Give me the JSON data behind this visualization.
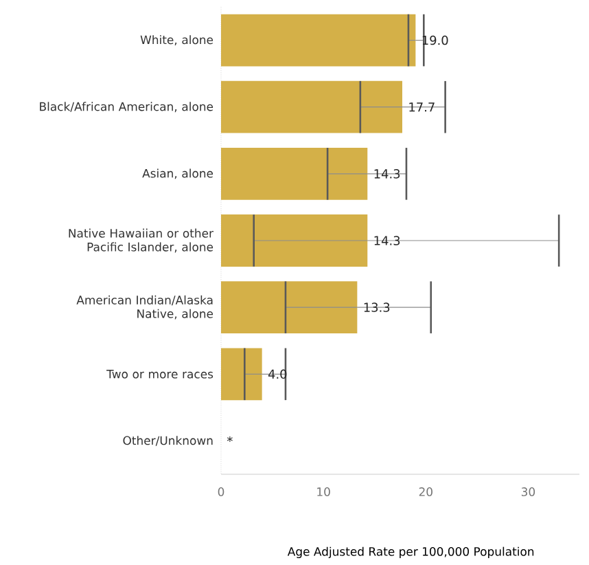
{
  "chart_data": {
    "type": "bar",
    "orientation": "horizontal",
    "xlabel": "Age Adjusted Rate per 100,000 Population",
    "categories": [
      "White, alone",
      "Black/African American, alone",
      "Asian, alone",
      "Native Hawaiian or other Pacific Islander, alone",
      "American Indian/Alaska Native, alone",
      "Two or more races",
      "Other/Unknown"
    ],
    "values": [
      19.0,
      17.7,
      14.3,
      14.3,
      13.3,
      4.0,
      null
    ],
    "value_labels": [
      "19.0",
      "17.7",
      "14.3",
      "14.3",
      "13.3",
      "4.0",
      "*"
    ],
    "errors": [
      [
        18.3,
        19.8
      ],
      [
        13.6,
        21.9
      ],
      [
        10.4,
        18.1
      ],
      [
        3.2,
        33.0
      ],
      [
        6.3,
        20.5
      ],
      [
        2.3,
        6.3
      ],
      null
    ],
    "color": "#d4b048",
    "xlim": [
      0,
      35
    ],
    "xticks": [
      0,
      10,
      20,
      30
    ],
    "grid": false
  }
}
